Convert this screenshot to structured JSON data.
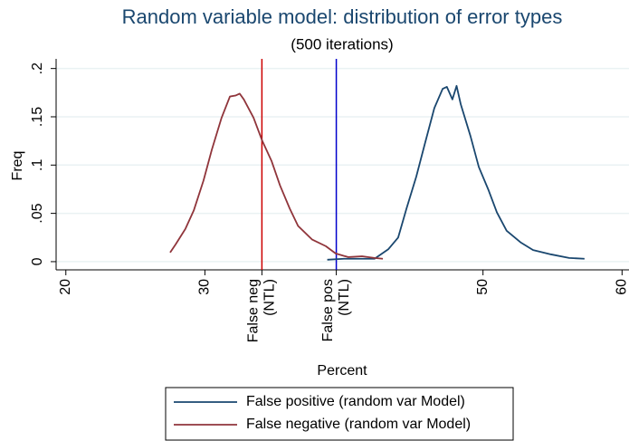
{
  "chart_data": {
    "type": "line",
    "title": "Random variable model: distribution of error types",
    "subtitle": "(500 iterations)",
    "x_label": "Percent",
    "y_label": "Freq",
    "xlim": [
      19.3,
      60.5
    ],
    "ylim": [
      -0.0085,
      0.21
    ],
    "xticks": [
      20,
      30,
      50,
      60
    ],
    "yticks": [
      0,
      {
        "value": 0.05,
        "label": ".05"
      },
      {
        "value": 0.1,
        "label": ".1"
      },
      {
        "value": 0.15,
        "label": ".15"
      },
      {
        "value": 0.2,
        "label": ".2"
      }
    ],
    "grid": true,
    "reference_lines": [
      {
        "value": 34.1,
        "label": [
          "False neg",
          "(NTL)"
        ],
        "color": "#cc0000"
      },
      {
        "value": 39.45,
        "label": [
          "False pos",
          "(NTL)"
        ],
        "color": "#0000cc"
      }
    ],
    "legend": "bottom",
    "series": [
      {
        "name": "False positive (random var Model)",
        "color": "#1a476f",
        "x": [
          38.8,
          40,
          42.2,
          43.2,
          43.9,
          44.5,
          45.2,
          45.8,
          46.5,
          47.1,
          47.4,
          47.8,
          48.1,
          48.4,
          49.1,
          49.7,
          50.4,
          51,
          51.7,
          52.7,
          53.6,
          54.9,
          56.2,
          57.3
        ],
        "values": [
          0.002,
          0.003,
          0.003,
          0.013,
          0.025,
          0.055,
          0.088,
          0.121,
          0.159,
          0.179,
          0.181,
          0.168,
          0.182,
          0.163,
          0.13,
          0.098,
          0.074,
          0.051,
          0.032,
          0.02,
          0.012,
          0.0075,
          0.0038,
          0.003
        ]
      },
      {
        "name": "False negative (random var Model)",
        "color": "#90353b",
        "x": [
          27.5,
          27.9,
          28.6,
          29.2,
          29.9,
          30.5,
          31.2,
          31.8,
          32.2,
          32.5,
          32.8,
          33.5,
          34.1,
          34.8,
          35.4,
          36.1,
          36.7,
          37.7,
          38.7,
          39.4,
          40.3,
          41.3,
          42.2,
          42.8
        ],
        "values": [
          0.0094,
          0.018,
          0.034,
          0.053,
          0.084,
          0.116,
          0.149,
          0.171,
          0.172,
          0.174,
          0.168,
          0.149,
          0.126,
          0.104,
          0.079,
          0.055,
          0.037,
          0.023,
          0.016,
          0.0085,
          0.0047,
          0.0056,
          0.0038,
          0.003
        ]
      }
    ]
  }
}
